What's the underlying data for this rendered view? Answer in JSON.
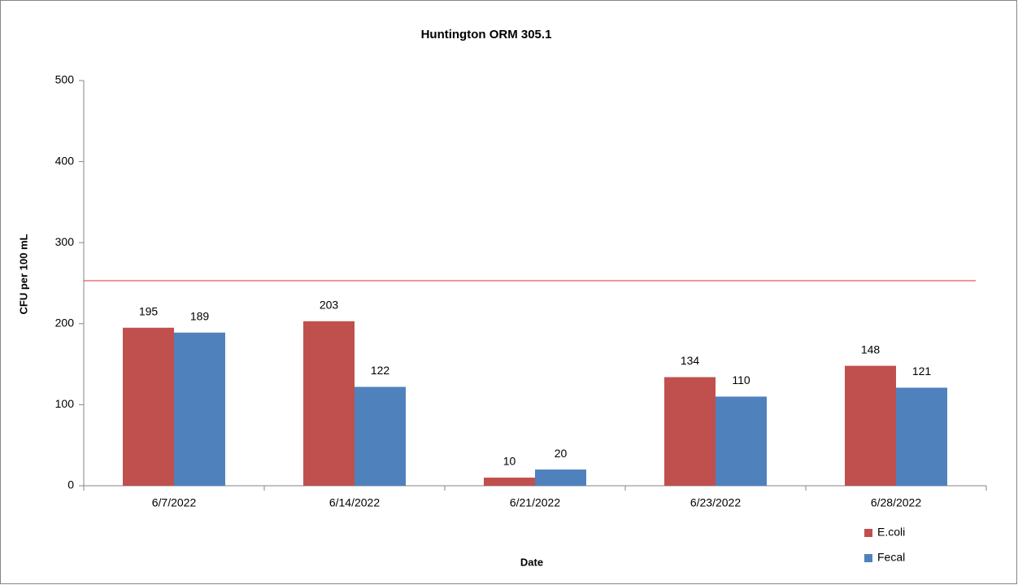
{
  "chart_data": {
    "type": "bar",
    "title": "Huntington ORM 305.1",
    "x_label": "Date",
    "y_label": "CFU per 100 mL",
    "categories": [
      "6/7/2022",
      "6/14/2022",
      "6/21/2022",
      "6/23/2022",
      "6/28/2022"
    ],
    "series": [
      {
        "name": "E.coli",
        "color": "#c0504d",
        "values": [
          195,
          203,
          10,
          134,
          148
        ]
      },
      {
        "name": "Fecal",
        "color": "#4f81bd",
        "values": [
          189,
          122,
          20,
          110,
          121
        ]
      }
    ],
    "reference_line": {
      "value": 253,
      "color": "#e03030"
    },
    "ylim": [
      0,
      500
    ],
    "yticks": [
      0,
      100,
      200,
      300,
      400,
      500
    ],
    "legend": "bottom-right"
  }
}
